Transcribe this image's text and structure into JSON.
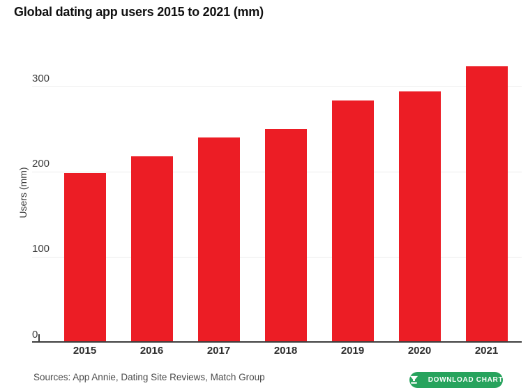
{
  "page": {
    "title": "Global dating app users 2015 to 2021 (mm)",
    "footer_sources": "Sources: App Annie, Dating Site Reviews, Match Group",
    "download_button": {
      "label": "DOWNLOAD CHART",
      "icon": "download-icon",
      "color": "#27a35d"
    }
  },
  "colors": {
    "bar_red": "#ec1d25",
    "grid_gray": "#ececec",
    "axis_dark": "#3d3d3d",
    "title_black": "#101010",
    "button_green": "#27a35d"
  },
  "chart_data": {
    "type": "bar",
    "title": "Global dating app users 2015 to 2021 (mm)",
    "categories": [
      "2015",
      "2016",
      "2017",
      "2018",
      "2019",
      "2020",
      "2021"
    ],
    "values": [
      198,
      218,
      240,
      250,
      283,
      294,
      323
    ],
    "xlabel": "",
    "ylabel": "Users (mm)",
    "ylim": [
      0,
      344
    ],
    "yticks": [
      0,
      100,
      200,
      300
    ],
    "grid": "horizontal",
    "bar_color": "#ec1d25",
    "legend": "none"
  }
}
